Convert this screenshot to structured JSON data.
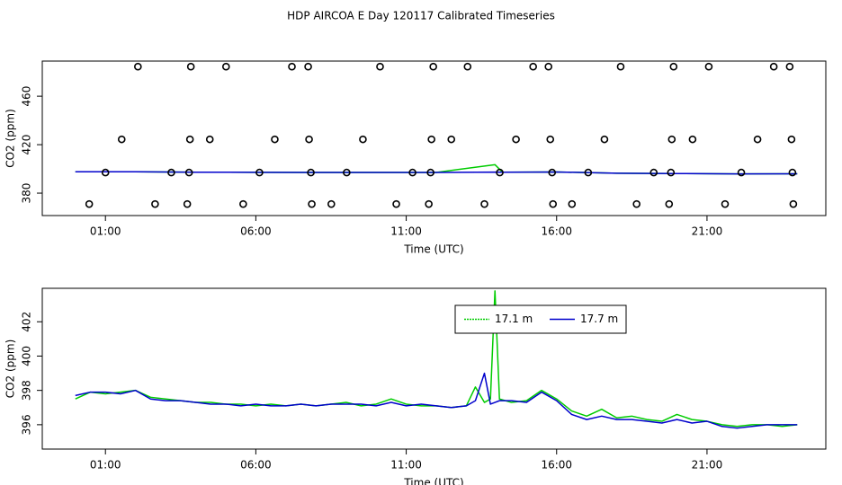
{
  "title": "HDP AIRCOA E  Day 120117  Calibrated Timeseries",
  "chart_data": [
    {
      "type": "line",
      "xlabel": "Time (UTC)",
      "ylabel": "CO2 (ppm)",
      "xlim": [
        -1.1,
        24.95
      ],
      "ylim": [
        361.5,
        489
      ],
      "xticks": [
        {
          "value": 1,
          "label": "01:00"
        },
        {
          "value": 6,
          "label": "06:00"
        },
        {
          "value": 11,
          "label": "11:00"
        },
        {
          "value": 16,
          "label": "16:00"
        },
        {
          "value": 21,
          "label": "21:00"
        }
      ],
      "yticks": [
        380,
        420,
        460
      ],
      "grid": false,
      "x": [
        0,
        2,
        4,
        6,
        8,
        10,
        12,
        13.95,
        14.2,
        16,
        18,
        20,
        22,
        24
      ],
      "series": [
        {
          "color": "#00cc00",
          "values": [
            397.6,
            397.6,
            397.3,
            397.2,
            397.1,
            397.1,
            397.1,
            403.5,
            397.3,
            397.5,
            396.4,
            396.2,
            395.9,
            396.0
          ]
        },
        {
          "color": "#0000cc",
          "values": [
            397.6,
            397.6,
            397.3,
            397.2,
            397.1,
            397.1,
            397.1,
            397.4,
            397.3,
            397.5,
            396.4,
            396.2,
            395.9,
            396.0
          ]
        },
        {
          "color": "#000000",
          "style": "points",
          "x": [
            2.08,
            3.84,
            5.01,
            7.2,
            7.74,
            10.13,
            11.9,
            13.04,
            15.22,
            15.73,
            18.13,
            19.89,
            21.06,
            23.22,
            23.75,
            1.54,
            3.81,
            4.47,
            6.63,
            7.77,
            9.56,
            11.84,
            12.5,
            14.65,
            15.79,
            17.59,
            19.83,
            20.52,
            22.68,
            23.81,
            1.0,
            3.19,
            3.78,
            6.12,
            7.83,
            9.02,
            11.21,
            11.81,
            14.11,
            15.85,
            17.05,
            19.23,
            19.8,
            22.14,
            23.84,
            0.46,
            2.65,
            3.72,
            5.58,
            7.86,
            8.51,
            10.67,
            11.75,
            13.6,
            15.88,
            16.51,
            18.66,
            19.74,
            21.6,
            23.87
          ],
          "values": [
            484.4,
            484.4,
            484.4,
            484.4,
            484.4,
            484.4,
            484.4,
            484.4,
            484.4,
            484.4,
            484.4,
            484.4,
            484.4,
            484.4,
            484.4,
            424.4,
            424.4,
            424.4,
            424.4,
            424.4,
            424.4,
            424.4,
            424.4,
            424.4,
            424.4,
            424.4,
            424.4,
            424.4,
            424.4,
            424.4,
            397,
            397,
            397,
            397,
            397,
            397,
            397,
            397,
            397,
            397,
            397,
            397,
            397,
            397,
            397,
            371,
            371,
            371,
            371,
            371,
            371,
            371,
            371,
            371,
            371,
            371,
            371,
            371,
            371,
            371
          ]
        }
      ]
    },
    {
      "type": "line",
      "xlabel": "Time (UTC)",
      "ylabel": "CO2 (ppm)",
      "xlim": [
        -1.1,
        24.95
      ],
      "ylim": [
        394.58,
        403.95
      ],
      "xticks": [
        {
          "value": 1,
          "label": "01:00"
        },
        {
          "value": 6,
          "label": "06:00"
        },
        {
          "value": 11,
          "label": "11:00"
        },
        {
          "value": 16,
          "label": "16:00"
        },
        {
          "value": 21,
          "label": "21:00"
        }
      ],
      "yticks": [
        396,
        398,
        400,
        402
      ],
      "grid": false,
      "legend": "top",
      "x": [
        0,
        0.5,
        1,
        1.5,
        2,
        2.5,
        3,
        3.5,
        4,
        4.5,
        5,
        5.5,
        6,
        6.5,
        7,
        7.5,
        8,
        8.5,
        9,
        9.5,
        10,
        10.5,
        11,
        11.5,
        12,
        12.5,
        13,
        13.3,
        13.6,
        13.8,
        13.95,
        14.1,
        14.5,
        15,
        15.5,
        16,
        16.5,
        17,
        17.5,
        18,
        18.5,
        19,
        19.5,
        20,
        20.5,
        21,
        21.5,
        22,
        22.5,
        23,
        23.5,
        24
      ],
      "series": [
        {
          "name": "17.1 m",
          "color": "#00cc00",
          "dash": true,
          "values": [
            397.5,
            397.9,
            397.8,
            397.9,
            398.0,
            397.6,
            397.5,
            397.4,
            397.3,
            397.3,
            397.2,
            397.2,
            397.1,
            397.2,
            397.1,
            397.2,
            397.1,
            397.2,
            397.3,
            397.1,
            397.2,
            397.5,
            397.2,
            397.1,
            397.1,
            397.0,
            397.1,
            398.2,
            397.3,
            397.5,
            403.8,
            397.5,
            397.3,
            397.4,
            398.0,
            397.5,
            396.8,
            396.5,
            396.9,
            396.4,
            396.5,
            396.3,
            396.2,
            396.6,
            396.3,
            396.2,
            396.0,
            395.9,
            396.0,
            396.0,
            395.9,
            396.0
          ]
        },
        {
          "name": "17.7 m",
          "color": "#0000cc",
          "values": [
            397.7,
            397.9,
            397.9,
            397.8,
            398.0,
            397.5,
            397.4,
            397.4,
            397.3,
            397.2,
            397.2,
            397.1,
            397.2,
            397.1,
            397.1,
            397.2,
            397.1,
            397.2,
            397.2,
            397.2,
            397.1,
            397.3,
            397.1,
            397.2,
            397.1,
            397.0,
            397.1,
            397.4,
            399.0,
            397.2,
            397.3,
            397.4,
            397.4,
            397.3,
            397.9,
            397.4,
            396.6,
            396.3,
            396.5,
            396.3,
            396.3,
            396.2,
            396.1,
            396.3,
            396.1,
            396.2,
            395.9,
            395.8,
            395.9,
            396.0,
            396.0,
            396.0
          ]
        }
      ]
    }
  ]
}
